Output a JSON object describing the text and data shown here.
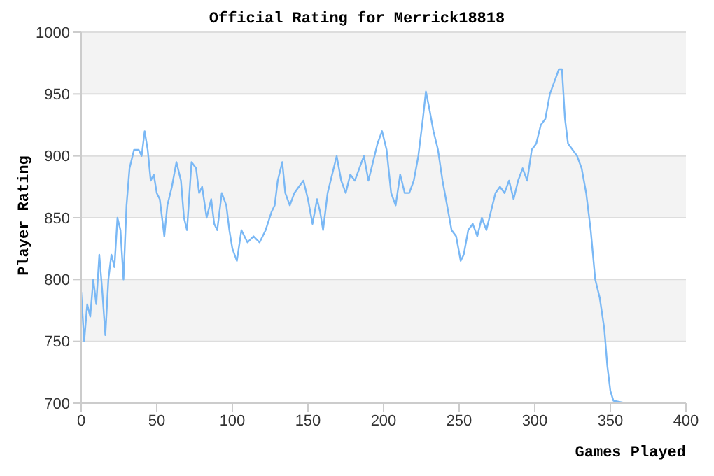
{
  "chart_data": {
    "type": "line",
    "title": "Official Rating for Merrick18818",
    "xlabel": "Games Played",
    "ylabel": "Player Rating",
    "x": [
      0,
      2,
      4,
      6,
      8,
      10,
      12,
      14,
      16,
      18,
      20,
      22,
      24,
      26,
      28,
      30,
      32,
      35,
      38,
      40,
      42,
      44,
      46,
      48,
      50,
      52,
      55,
      57,
      60,
      63,
      66,
      68,
      70,
      73,
      76,
      78,
      80,
      83,
      86,
      88,
      90,
      93,
      96,
      98,
      100,
      103,
      106,
      110,
      114,
      118,
      122,
      126,
      128,
      130,
      133,
      135,
      138,
      141,
      144,
      147,
      150,
      153,
      156,
      158,
      160,
      163,
      166,
      169,
      172,
      175,
      178,
      181,
      184,
      187,
      190,
      193,
      196,
      199,
      202,
      205,
      208,
      211,
      214,
      217,
      220,
      223,
      226,
      228,
      230,
      233,
      236,
      239,
      242,
      245,
      248,
      251,
      253,
      256,
      259,
      262,
      265,
      268,
      271,
      274,
      277,
      280,
      283,
      286,
      289,
      292,
      295,
      298,
      301,
      304,
      307,
      310,
      313,
      316,
      318,
      320,
      322,
      325,
      328,
      331,
      334,
      337,
      340,
      343,
      346,
      348,
      350,
      352,
      360
    ],
    "series": [
      {
        "color": "#7ab8f5",
        "values": [
          790,
          750,
          780,
          770,
          800,
          780,
          820,
          790,
          755,
          800,
          820,
          810,
          850,
          840,
          800,
          860,
          890,
          905,
          905,
          900,
          920,
          905,
          880,
          885,
          870,
          865,
          835,
          860,
          875,
          895,
          880,
          850,
          840,
          895,
          890,
          870,
          875,
          850,
          865,
          845,
          840,
          870,
          860,
          840,
          825,
          815,
          840,
          830,
          835,
          830,
          840,
          855,
          860,
          880,
          895,
          870,
          860,
          870,
          875,
          880,
          865,
          845,
          865,
          855,
          840,
          870,
          885,
          900,
          880,
          870,
          885,
          880,
          890,
          900,
          880,
          895,
          910,
          920,
          905,
          870,
          860,
          885,
          870,
          870,
          880,
          900,
          930,
          952,
          940,
          920,
          905,
          880,
          860,
          840,
          835,
          815,
          820,
          840,
          845,
          835,
          850,
          840,
          855,
          870,
          875,
          870,
          880,
          865,
          880,
          890,
          880,
          905,
          910,
          925,
          930,
          950,
          960,
          970,
          970,
          930,
          910,
          905,
          900,
          890,
          870,
          840,
          800,
          785,
          760,
          730,
          710,
          702,
          700
        ]
      }
    ],
    "xlim": [
      0,
      400
    ],
    "xticks": [
      0,
      50,
      100,
      150,
      200,
      250,
      300,
      350,
      400
    ],
    "ylim": [
      700,
      1000
    ],
    "yticks": [
      700,
      750,
      800,
      850,
      900,
      950,
      1000
    ],
    "grid": "y",
    "legend": false,
    "marker": "none",
    "line_style": "solid"
  }
}
